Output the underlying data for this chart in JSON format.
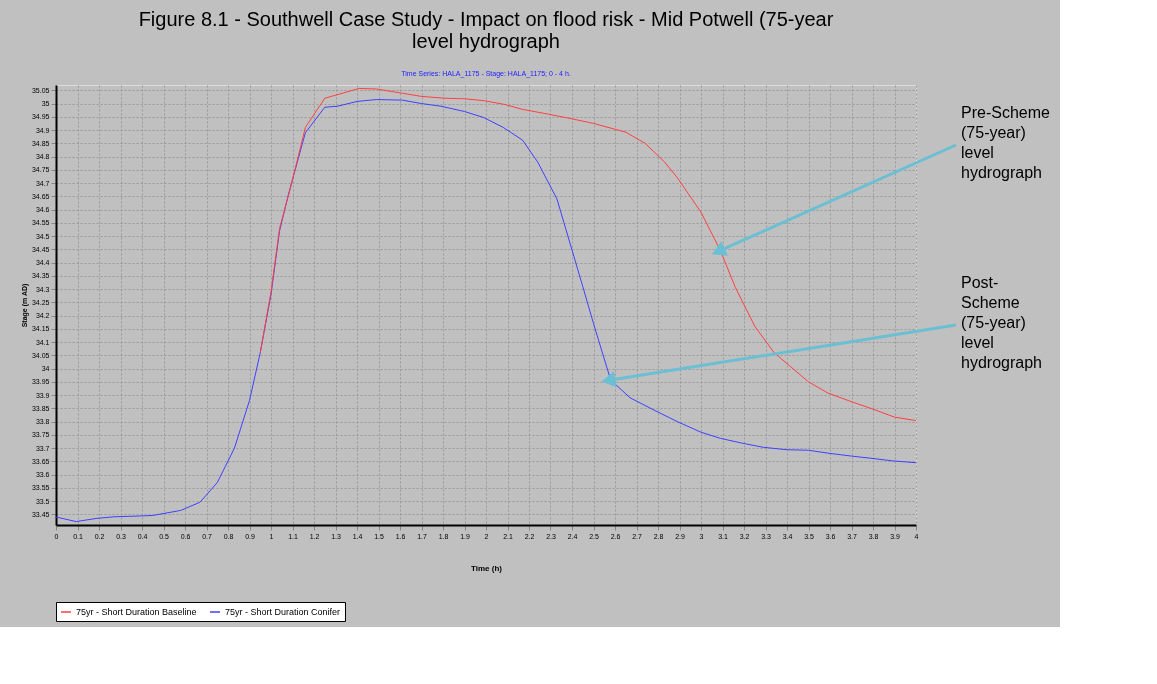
{
  "chart_data": {
    "type": "line",
    "title": "Figure 8.1 - Southwell Case Study - Impact on flood risk - Mid Potwell (75-year level hydrograph",
    "subtitle": "Time Series: HALA_1175 - Stage: HALA_1175; 0 - 4 h.",
    "xlabel": "Time (h)",
    "ylabel": "Stage (m AD)",
    "xlim": [
      0,
      4
    ],
    "xticks": [
      0,
      0.1,
      0.2,
      0.3,
      0.4,
      0.5,
      0.6,
      0.7,
      0.8,
      0.9,
      1,
      1.1,
      1.2,
      1.3,
      1.4,
      1.5,
      1.6,
      1.7,
      1.8,
      1.9,
      2,
      2.1,
      2.2,
      2.3,
      2.4,
      2.5,
      2.6,
      2.7,
      2.8,
      2.9,
      3,
      3.1,
      3.2,
      3.3,
      3.4,
      3.5,
      3.6,
      3.7,
      3.8,
      3.9,
      4
    ],
    "ylim": [
      33.41,
      35.07
    ],
    "yticks": [
      33.45,
      33.5,
      33.55,
      33.6,
      33.65,
      33.7,
      33.75,
      33.8,
      33.85,
      33.9,
      33.95,
      34,
      34.05,
      34.1,
      34.15,
      34.2,
      34.25,
      34.3,
      34.35,
      34.4,
      34.45,
      34.5,
      34.55,
      34.6,
      34.65,
      34.7,
      34.75,
      34.8,
      34.85,
      34.9,
      34.95,
      35,
      35.05
    ],
    "grid": true,
    "legend": "bottom",
    "line_style": "solid",
    "marker": "none",
    "series": [
      {
        "name": "75yr - Short Duration Baseline",
        "color": "#ff4040",
        "x": [
          0.95,
          1.0,
          1.04,
          1.09,
          1.16,
          1.25,
          1.41,
          1.49,
          1.61,
          1.7,
          1.81,
          1.9,
          1.99,
          2.09,
          2.17,
          2.29,
          2.39,
          2.5,
          2.65,
          2.74,
          2.83,
          2.89,
          3.0,
          3.09,
          3.16,
          3.25,
          3.34,
          3.41,
          3.5,
          3.59,
          3.69,
          3.8,
          3.9,
          4
        ],
        "values": [
          34.06,
          34.29,
          34.53,
          34.68,
          34.91,
          35.02,
          35.057,
          35.055,
          35.039,
          35.027,
          35.02,
          35.018,
          35.011,
          34.996,
          34.978,
          34.96,
          34.944,
          34.925,
          34.892,
          34.85,
          34.78,
          34.72,
          34.59,
          34.446,
          34.306,
          34.16,
          34.06,
          34.012,
          33.95,
          33.908,
          33.878,
          33.847,
          33.817,
          33.804
        ]
      },
      {
        "name": "75yr - Short Duration Conifer",
        "color": "#4040ff",
        "x": [
          0,
          0.094,
          0.19,
          0.27,
          0.39,
          0.45,
          0.58,
          0.67,
          0.75,
          0.83,
          0.9,
          0.95,
          1.0,
          1.04,
          1.08,
          1.16,
          1.25,
          1.31,
          1.4,
          1.49,
          1.61,
          1.7,
          1.79,
          1.9,
          1.99,
          2.08,
          2.17,
          2.24,
          2.33,
          2.45,
          2.5,
          2.58,
          2.67,
          2.79,
          2.89,
          3.0,
          3.09,
          3.19,
          3.29,
          3.4,
          3.5,
          3.6,
          3.7,
          3.8,
          3.89,
          4
        ],
        "values": [
          33.44,
          33.423,
          33.435,
          33.441,
          33.444,
          33.446,
          33.465,
          33.496,
          33.57,
          33.7,
          33.88,
          34.06,
          34.28,
          34.52,
          34.654,
          34.89,
          34.986,
          34.99,
          35.008,
          35.015,
          35.013,
          35.0,
          34.99,
          34.97,
          34.947,
          34.91,
          34.862,
          34.78,
          34.64,
          34.31,
          34.17,
          33.957,
          33.89,
          33.84,
          33.8,
          33.76,
          33.737,
          33.719,
          33.703,
          33.694,
          33.692,
          33.68,
          33.67,
          33.661,
          33.652,
          33.645
        ]
      }
    ],
    "annotations": [
      {
        "text": "Pre-Scheme (75-year) level hydrograph",
        "x": 3.09,
        "y": 34.446
      },
      {
        "text": "Post-Scheme (75-year) level hydrograph",
        "x": 2.58,
        "y": 33.957
      }
    ]
  }
}
